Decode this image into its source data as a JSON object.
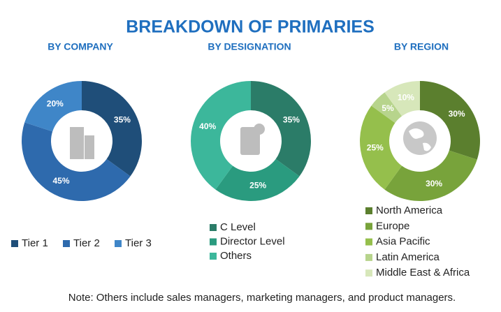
{
  "title": "BREAKDOWN OF PRIMARIES",
  "note": "Note: Others include sales managers, marketing managers, and product managers.",
  "chart_data": [
    {
      "type": "pie",
      "title": "BY COMPANY",
      "categories": [
        "Tier 1",
        "Tier 2",
        "Tier 3"
      ],
      "values": [
        35,
        45,
        20
      ],
      "value_labels": [
        "35%",
        "45%",
        "20%"
      ],
      "colors": [
        "#1f4e79",
        "#2e6aad",
        "#3f86c8"
      ]
    },
    {
      "type": "pie",
      "title": "BY DESIGNATION",
      "categories": [
        "C Level",
        "Director Level",
        "Others"
      ],
      "values": [
        35,
        25,
        40
      ],
      "value_labels": [
        "35%",
        "25%",
        "40%"
      ],
      "colors": [
        "#2b7c68",
        "#2a9b7f",
        "#3cb79b"
      ]
    },
    {
      "type": "pie",
      "title": "BY REGION",
      "categories": [
        "North America",
        "Europe",
        "Asia Pacific",
        "Latin America",
        "Middle East & Africa"
      ],
      "values": [
        30,
        30,
        25,
        5,
        10
      ],
      "value_labels": [
        "30%",
        "30%",
        "25%",
        "5%",
        "10%"
      ],
      "colors": [
        "#5b7f2e",
        "#78a33b",
        "#95bf4c",
        "#b7d48c",
        "#d7e7ba"
      ]
    }
  ]
}
